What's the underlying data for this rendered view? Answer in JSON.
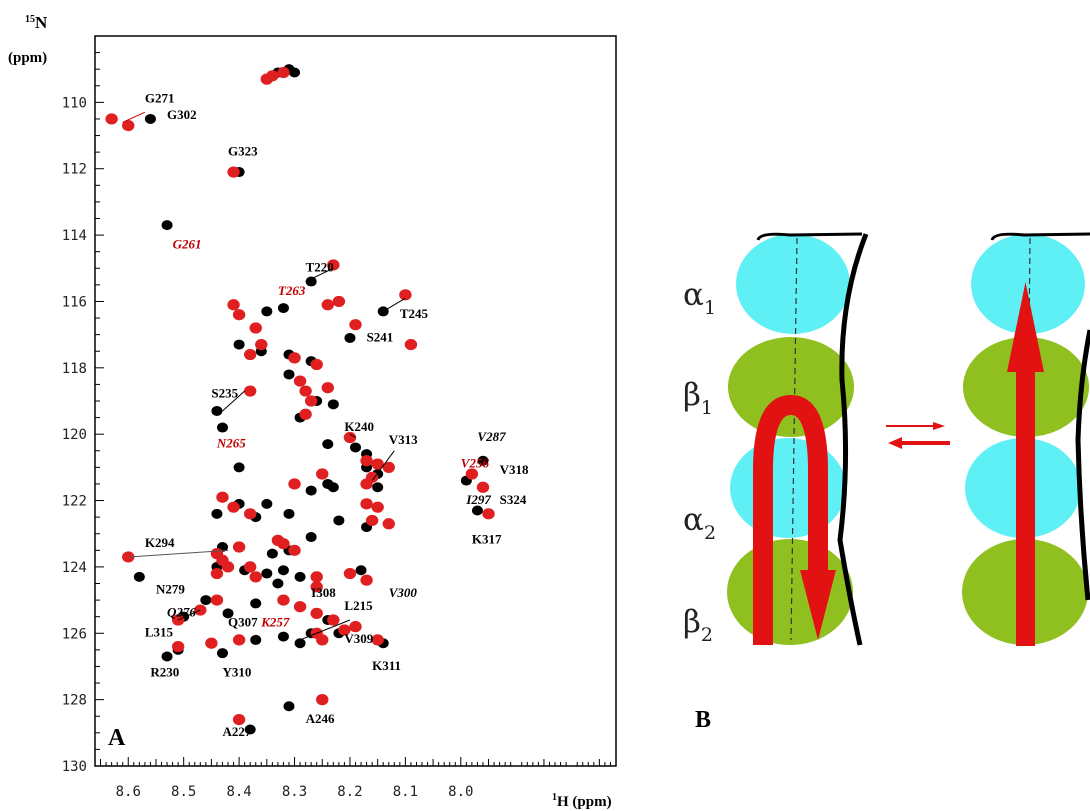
{
  "chart_data": {
    "type": "scatter",
    "panel_a": {
      "label": "A",
      "x_unit_super": "1",
      "x_unit_main": "H (ppm)",
      "y_unit_super": "15",
      "y_unit_main": "N",
      "y_unit_sub": "(ppm)",
      "xlim": [
        8.66,
        7.72
      ],
      "ylim": [
        130,
        108
      ],
      "x_ticks": [
        "8.6",
        "8.5",
        "8.4",
        "8.3",
        "8.2",
        "8.1",
        "8.0"
      ],
      "y_ticks": [
        "110",
        "112",
        "114",
        "116",
        "118",
        "120",
        "122",
        "124",
        "126",
        "128",
        "130"
      ],
      "series": [
        {
          "color": "#000000",
          "points": [
            [
              8.33,
              109.1
            ],
            [
              8.31,
              109.0
            ],
            [
              8.3,
              109.1
            ],
            [
              8.56,
              110.5
            ],
            [
              8.4,
              112.1
            ],
            [
              8.53,
              113.7
            ],
            [
              8.27,
              115.4
            ],
            [
              8.14,
              116.3
            ],
            [
              8.35,
              116.3
            ],
            [
              8.32,
              116.2
            ],
            [
              8.2,
              117.1
            ],
            [
              8.4,
              117.3
            ],
            [
              8.36,
              117.5
            ],
            [
              8.31,
              117.6
            ],
            [
              8.27,
              117.8
            ],
            [
              8.31,
              118.2
            ],
            [
              8.26,
              119.0
            ],
            [
              8.23,
              119.1
            ],
            [
              8.44,
              119.3
            ],
            [
              8.29,
              119.5
            ],
            [
              8.43,
              119.8
            ],
            [
              8.24,
              120.3
            ],
            [
              8.19,
              120.4
            ],
            [
              8.17,
              120.6
            ],
            [
              8.17,
              121.0
            ],
            [
              8.4,
              121.0
            ],
            [
              8.15,
              121.2
            ],
            [
              8.23,
              121.6
            ],
            [
              8.15,
              121.6
            ],
            [
              7.96,
              120.8
            ],
            [
              7.99,
              121.4
            ],
            [
              7.97,
              122.3
            ],
            [
              8.4,
              122.1
            ],
            [
              8.35,
              122.1
            ],
            [
              8.27,
              121.7
            ],
            [
              8.24,
              121.5
            ],
            [
              8.44,
              122.4
            ],
            [
              8.37,
              122.5
            ],
            [
              8.31,
              122.4
            ],
            [
              8.22,
              122.6
            ],
            [
              8.17,
              122.8
            ],
            [
              8.27,
              123.1
            ],
            [
              8.43,
              123.4
            ],
            [
              8.34,
              123.6
            ],
            [
              8.31,
              123.5
            ],
            [
              8.44,
              124.0
            ],
            [
              8.39,
              124.1
            ],
            [
              8.35,
              124.2
            ],
            [
              8.29,
              124.3
            ],
            [
              8.18,
              124.1
            ],
            [
              8.58,
              124.3
            ],
            [
              8.33,
              124.5
            ],
            [
              8.46,
              125.0
            ],
            [
              8.37,
              125.1
            ],
            [
              8.42,
              125.4
            ],
            [
              8.5,
              125.5
            ],
            [
              8.24,
              125.6
            ],
            [
              8.22,
              126.0
            ],
            [
              8.32,
              126.1
            ],
            [
              8.27,
              126.0
            ],
            [
              8.29,
              126.3
            ],
            [
              8.37,
              126.2
            ],
            [
              8.14,
              126.3
            ],
            [
              8.51,
              126.5
            ],
            [
              8.53,
              126.7
            ],
            [
              8.43,
              126.6
            ],
            [
              8.31,
              128.2
            ],
            [
              8.38,
              128.9
            ],
            [
              8.32,
              124.1
            ]
          ]
        },
        {
          "color": "#e02020",
          "points": [
            [
              8.35,
              109.3
            ],
            [
              8.34,
              109.2
            ],
            [
              8.32,
              109.1
            ],
            [
              8.63,
              110.5
            ],
            [
              8.6,
              110.7
            ],
            [
              8.41,
              112.1
            ],
            [
              8.23,
              114.9
            ],
            [
              8.1,
              115.8
            ],
            [
              8.41,
              116.1
            ],
            [
              8.4,
              116.4
            ],
            [
              8.24,
              116.1
            ],
            [
              8.22,
              116.0
            ],
            [
              8.19,
              116.7
            ],
            [
              8.37,
              116.8
            ],
            [
              8.36,
              117.3
            ],
            [
              8.38,
              117.6
            ],
            [
              8.3,
              117.7
            ],
            [
              8.26,
              117.9
            ],
            [
              8.29,
              118.4
            ],
            [
              8.24,
              118.6
            ],
            [
              8.28,
              118.7
            ],
            [
              8.27,
              119.0
            ],
            [
              8.28,
              119.4
            ],
            [
              8.38,
              118.7
            ],
            [
              8.2,
              120.1
            ],
            [
              8.17,
              120.8
            ],
            [
              8.15,
              120.9
            ],
            [
              8.13,
              121.0
            ],
            [
              8.16,
              121.3
            ],
            [
              8.17,
              121.5
            ],
            [
              8.25,
              121.2
            ],
            [
              8.3,
              121.5
            ],
            [
              7.98,
              121.2
            ],
            [
              7.96,
              121.6
            ],
            [
              7.95,
              122.4
            ],
            [
              8.17,
              122.1
            ],
            [
              8.15,
              122.2
            ],
            [
              8.16,
              122.6
            ],
            [
              8.13,
              122.7
            ],
            [
              8.43,
              121.9
            ],
            [
              8.41,
              122.2
            ],
            [
              8.38,
              122.4
            ],
            [
              8.33,
              123.2
            ],
            [
              8.32,
              123.3
            ],
            [
              8.4,
              123.4
            ],
            [
              8.44,
              123.6
            ],
            [
              8.43,
              123.8
            ],
            [
              8.42,
              124.0
            ],
            [
              8.44,
              124.2
            ],
            [
              8.38,
              124.0
            ],
            [
              8.37,
              124.3
            ],
            [
              8.3,
              123.5
            ],
            [
              8.2,
              124.2
            ],
            [
              8.17,
              124.4
            ],
            [
              8.26,
              124.3
            ],
            [
              8.26,
              124.6
            ],
            [
              8.32,
              125.0
            ],
            [
              8.44,
              125.0
            ],
            [
              8.47,
              125.3
            ],
            [
              8.51,
              125.6
            ],
            [
              8.29,
              125.2
            ],
            [
              8.26,
              125.4
            ],
            [
              8.23,
              125.6
            ],
            [
              8.21,
              125.9
            ],
            [
              8.26,
              126.0
            ],
            [
              8.25,
              126.2
            ],
            [
              8.19,
              125.8
            ],
            [
              8.15,
              126.2
            ],
            [
              8.4,
              126.2
            ],
            [
              8.45,
              126.3
            ],
            [
              8.51,
              126.4
            ],
            [
              8.6,
              123.7
            ],
            [
              8.4,
              128.6
            ],
            [
              8.25,
              128.0
            ],
            [
              8.09,
              117.3
            ]
          ]
        }
      ],
      "labels": [
        {
          "text": "G271",
          "x": 8.57,
          "y": 110.0,
          "color": "#000"
        },
        {
          "text": "G302",
          "x": 8.53,
          "y": 110.5,
          "color": "#000"
        },
        {
          "text": "G323",
          "x": 8.42,
          "y": 111.6,
          "color": "#000"
        },
        {
          "text": "G261",
          "x": 8.52,
          "y": 114.4,
          "color": "#c00000",
          "italic": true
        },
        {
          "text": "T220",
          "x": 8.28,
          "y": 115.1,
          "color": "#000"
        },
        {
          "text": "T263",
          "x": 8.33,
          "y": 115.8,
          "color": "#c00000",
          "italic": true
        },
        {
          "text": "T245",
          "x": 8.11,
          "y": 116.5,
          "color": "#000"
        },
        {
          "text": "S241",
          "x": 8.17,
          "y": 117.2,
          "color": "#000"
        },
        {
          "text": "S235",
          "x": 8.45,
          "y": 118.9,
          "color": "#000"
        },
        {
          "text": "N265",
          "x": 8.44,
          "y": 120.4,
          "color": "#c00000",
          "italic": true
        },
        {
          "text": "K240",
          "x": 8.21,
          "y": 119.9,
          "color": "#000"
        },
        {
          "text": "V313",
          "x": 8.13,
          "y": 120.3,
          "color": "#000"
        },
        {
          "text": "V287",
          "x": 7.97,
          "y": 120.2,
          "color": "#000",
          "italic": true
        },
        {
          "text": "V256",
          "x": 8.0,
          "y": 121.0,
          "color": "#c00000",
          "italic": true
        },
        {
          "text": "V318",
          "x": 7.93,
          "y": 121.2,
          "color": "#000"
        },
        {
          "text": "I297",
          "x": 7.99,
          "y": 122.1,
          "color": "#000",
          "italic": true
        },
        {
          "text": "S324",
          "x": 7.93,
          "y": 122.1,
          "color": "#000"
        },
        {
          "text": "K317",
          "x": 7.98,
          "y": 123.3,
          "color": "#000"
        },
        {
          "text": "K294",
          "x": 8.57,
          "y": 123.4,
          "color": "#000"
        },
        {
          "text": "N279",
          "x": 8.55,
          "y": 124.8,
          "color": "#000"
        },
        {
          "text": "Q276",
          "x": 8.53,
          "y": 125.5,
          "color": "#000",
          "italic": true
        },
        {
          "text": "L315",
          "x": 8.57,
          "y": 126.1,
          "color": "#000"
        },
        {
          "text": "Q307",
          "x": 8.42,
          "y": 125.8,
          "color": "#000"
        },
        {
          "text": "K257",
          "x": 8.36,
          "y": 125.8,
          "color": "#c00000",
          "italic": true
        },
        {
          "text": "I308",
          "x": 8.27,
          "y": 124.9,
          "color": "#000"
        },
        {
          "text": "L215",
          "x": 8.21,
          "y": 125.3,
          "color": "#000"
        },
        {
          "text": "V300",
          "x": 8.13,
          "y": 124.9,
          "color": "#000",
          "italic": true
        },
        {
          "text": "V309",
          "x": 8.21,
          "y": 126.3,
          "color": "#000"
        },
        {
          "text": "K311",
          "x": 8.16,
          "y": 127.1,
          "color": "#000"
        },
        {
          "text": "R230",
          "x": 8.56,
          "y": 127.3,
          "color": "#000"
        },
        {
          "text": "Y310",
          "x": 8.43,
          "y": 127.3,
          "color": "#000"
        },
        {
          "text": "A246",
          "x": 8.28,
          "y": 128.7,
          "color": "#000"
        },
        {
          "text": "A227",
          "x": 8.43,
          "y": 129.1,
          "color": "#000"
        }
      ]
    },
    "panel_b": {
      "label": "B",
      "subunits": [
        {
          "greek": "α",
          "sub": "1",
          "color": "#5ff0f5"
        },
        {
          "greek": "β",
          "sub": "1",
          "color": "#8fc020"
        },
        {
          "greek": "α",
          "sub": "2",
          "color": "#5ff0f5"
        },
        {
          "greek": "β",
          "sub": "2",
          "color": "#8fc020"
        }
      ],
      "arrow_color": "#e31212"
    }
  }
}
